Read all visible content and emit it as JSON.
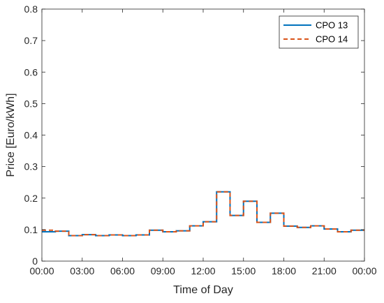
{
  "chart_data": {
    "type": "line",
    "style": "step",
    "xlabel": "Time of Day",
    "ylabel": "Price [Euro/kWh]",
    "xlim": [
      0,
      24
    ],
    "ylim": [
      0,
      0.8
    ],
    "x_ticks": [
      {
        "value": 0,
        "label": "00:00"
      },
      {
        "value": 3,
        "label": "03:00"
      },
      {
        "value": 6,
        "label": "06:00"
      },
      {
        "value": 9,
        "label": "09:00"
      },
      {
        "value": 12,
        "label": "12:00"
      },
      {
        "value": 15,
        "label": "15:00"
      },
      {
        "value": 18,
        "label": "18:00"
      },
      {
        "value": 21,
        "label": "21:00"
      },
      {
        "value": 24,
        "label": "00:00"
      }
    ],
    "y_ticks": [
      {
        "value": 0,
        "label": "0"
      },
      {
        "value": 0.1,
        "label": "0.1"
      },
      {
        "value": 0.2,
        "label": "0.2"
      },
      {
        "value": 0.3,
        "label": "0.3"
      },
      {
        "value": 0.4,
        "label": "0.4"
      },
      {
        "value": 0.5,
        "label": "0.5"
      },
      {
        "value": 0.6,
        "label": "0.6"
      },
      {
        "value": 0.7,
        "label": "0.7"
      },
      {
        "value": 0.8,
        "label": "0.8"
      }
    ],
    "grid": false,
    "legend_position": "top-right",
    "x": [
      0,
      1,
      2,
      3,
      4,
      5,
      6,
      7,
      8,
      9,
      10,
      11,
      12,
      13,
      14,
      15,
      16,
      17,
      18,
      19,
      20,
      21,
      22,
      23,
      24
    ],
    "series": [
      {
        "name": "CPO 13",
        "color": "#0072BD",
        "line_style": "solid",
        "values": [
          0.093,
          0.095,
          0.081,
          0.084,
          0.081,
          0.083,
          0.081,
          0.083,
          0.098,
          0.093,
          0.096,
          0.112,
          0.125,
          0.22,
          0.145,
          0.19,
          0.123,
          0.152,
          0.111,
          0.107,
          0.112,
          0.102,
          0.093,
          0.098,
          0.098
        ]
      },
      {
        "name": "CPO 14",
        "color": "#D95319",
        "line_style": "dashed",
        "values": [
          0.098,
          0.095,
          0.081,
          0.084,
          0.081,
          0.083,
          0.081,
          0.083,
          0.098,
          0.093,
          0.096,
          0.112,
          0.125,
          0.22,
          0.145,
          0.19,
          0.123,
          0.152,
          0.111,
          0.107,
          0.112,
          0.102,
          0.093,
          0.098,
          0.098
        ]
      }
    ]
  }
}
